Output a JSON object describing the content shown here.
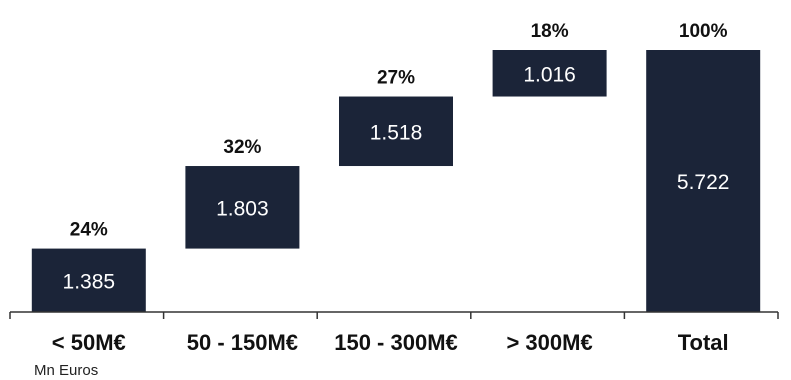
{
  "chart_data": {
    "type": "waterfall",
    "categories": [
      "< 50M€",
      "50 - 150M€",
      "150 - 300M€",
      "> 300M€",
      "Total"
    ],
    "values": [
      "1.385",
      "1.803",
      "1.518",
      "1.016",
      "5.722"
    ],
    "numeric_values": [
      1.385,
      1.803,
      1.518,
      1.016,
      5.722
    ],
    "percentages": [
      "24%",
      "32%",
      "27%",
      "18%",
      "100%"
    ],
    "total_index": 4,
    "unit_label": "Mn Euros",
    "ylim": [
      0,
      5.722
    ],
    "grid": false,
    "legend": "none",
    "bar_color": "#1b2438",
    "value_label_color": "#ffffff"
  }
}
